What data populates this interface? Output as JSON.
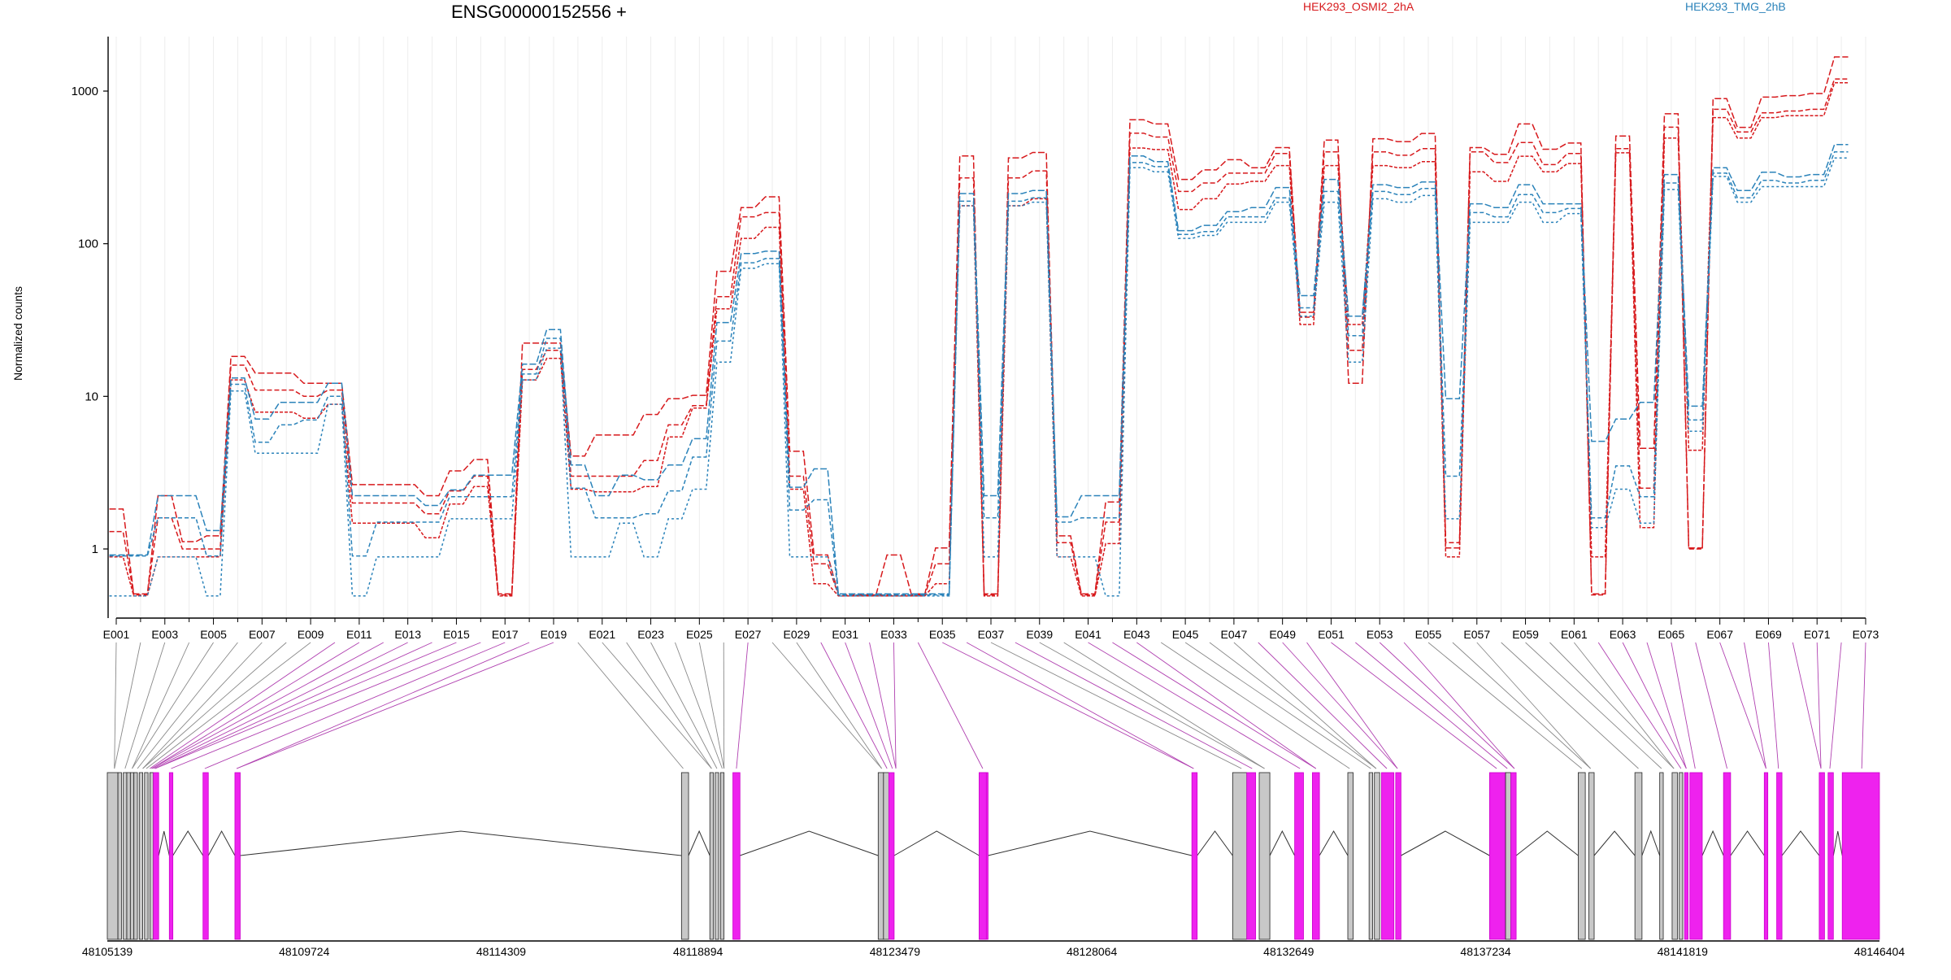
{
  "chart_data": {
    "type": "line",
    "title": "ENSG00000152556 +",
    "ylabel": "Normalized counts",
    "yscale": "log",
    "ylim": [
      0.5,
      2000
    ],
    "yticks": [
      1,
      10,
      100,
      1000
    ],
    "ytick_labels": [
      "1",
      "10",
      "100",
      "1000"
    ],
    "exon_labels_shown": [
      "E001",
      "E003",
      "E005",
      "E007",
      "E009",
      "E011",
      "E013",
      "E015",
      "E017",
      "E019",
      "E021",
      "E023",
      "E025",
      "E027",
      "E029",
      "E031",
      "E033",
      "E035",
      "E037",
      "E039",
      "E041",
      "E043",
      "E045",
      "E047",
      "E049",
      "E051",
      "E053",
      "E055",
      "E057",
      "E059",
      "E061",
      "E063",
      "E065",
      "E067",
      "E069",
      "E071",
      "E073"
    ],
    "groups": [
      {
        "name": "HEK293_OSMI2_2hA",
        "color": "#d7191c"
      },
      {
        "name": "HEK293_TMG_2hB",
        "color": "#2b83ba"
      }
    ],
    "series": [
      {
        "group": 0,
        "dash": "8,3",
        "values": [
          1.8,
          0.5,
          2.2,
          1.1,
          1.2,
          18,
          14,
          14,
          12,
          12,
          2.6,
          2.6,
          2.6,
          2.2,
          3.2,
          3.8,
          0.5,
          22,
          22,
          4,
          5.5,
          5.5,
          7.5,
          9.5,
          10,
          65,
          170,
          200,
          4.3,
          0.9,
          0.5,
          0.5,
          0.9,
          0.5,
          1,
          370,
          0.5,
          360,
          390,
          1.2,
          0.5,
          2,
          640,
          600,
          260,
          300,
          350,
          310,
          420,
          35,
          470,
          12,
          480,
          460,
          520,
          1,
          420,
          380,
          600,
          410,
          450,
          0.5,
          500,
          4.5,
          700,
          1,
          880,
          570,
          900,
          920,
          950,
          1650
        ]
      },
      {
        "group": 0,
        "dash": "6,3",
        "values": [
          1.3,
          0.5,
          1.6,
          1,
          1,
          16,
          11,
          11,
          10,
          11,
          2,
          2,
          2,
          1.7,
          2.4,
          3,
          0.5,
          15,
          20,
          3,
          3,
          3,
          3.8,
          6.5,
          8.7,
          45,
          150,
          160,
          3,
          0.8,
          0.5,
          0.5,
          0.5,
          0.5,
          0.8,
          270,
          0.5,
          270,
          300,
          1.1,
          0.5,
          1.5,
          530,
          500,
          220,
          250,
          290,
          290,
          390,
          33,
          400,
          20,
          400,
          380,
          420,
          1.1,
          400,
          340,
          460,
          330,
          390,
          0.5,
          420,
          2.5,
          580,
          1,
          760,
          540,
          720,
          740,
          760,
          1200
        ]
      },
      {
        "group": 0,
        "dash": "4,2",
        "values": [
          0.9,
          0.5,
          0.9,
          0.9,
          0.9,
          13,
          8,
          8,
          7.3,
          9,
          1.5,
          1.5,
          1.5,
          1.2,
          2,
          2.6,
          0.5,
          13,
          18,
          2.5,
          2.4,
          2.4,
          2.6,
          5.5,
          8.5,
          38,
          110,
          130,
          2.5,
          0.6,
          0.5,
          0.5,
          0.5,
          0.5,
          0.6,
          180,
          0.5,
          180,
          200,
          0.9,
          0.5,
          1.1,
          430,
          420,
          170,
          200,
          250,
          260,
          330,
          30,
          330,
          30,
          330,
          320,
          350,
          0.9,
          300,
          260,
          380,
          300,
          340,
          0.9,
          400,
          1.4,
          500,
          4.5,
          680,
          500,
          680,
          700,
          700,
          1150
        ]
      },
      {
        "group": 1,
        "dash": "8,3",
        "values": [
          0.9,
          0.9,
          2.2,
          2.2,
          1.3,
          13,
          7,
          9,
          9,
          12,
          2.2,
          2.2,
          2.2,
          1.9,
          2.4,
          3,
          3,
          16,
          27,
          3.5,
          2.2,
          3,
          2.8,
          3.5,
          5.2,
          30,
          85,
          88,
          2.5,
          3.3,
          0.5,
          0.5,
          0.5,
          0.5,
          0.5,
          210,
          2.2,
          210,
          220,
          1.6,
          2.2,
          2.2,
          370,
          340,
          120,
          130,
          160,
          170,
          230,
          45,
          260,
          33,
          240,
          230,
          250,
          9.5,
          180,
          170,
          240,
          180,
          180,
          5,
          7,
          9,
          280,
          8.5,
          310,
          220,
          290,
          270,
          280,
          440
        ]
      },
      {
        "group": 1,
        "dash": "5,3",
        "values": [
          0.9,
          0.9,
          1.6,
          1.6,
          0.9,
          12,
          5,
          6.5,
          7,
          10,
          0.9,
          1.5,
          1.5,
          1.5,
          2.2,
          2.2,
          2.2,
          14,
          24,
          2.5,
          1.6,
          1.6,
          1.7,
          2.4,
          4,
          23,
          75,
          80,
          1.8,
          2.1,
          0.5,
          0.5,
          0.5,
          0.5,
          0.5,
          190,
          1.6,
          190,
          200,
          1.5,
          1.6,
          1.6,
          340,
          320,
          115,
          120,
          150,
          150,
          200,
          38,
          220,
          25,
          220,
          210,
          230,
          3,
          160,
          150,
          210,
          160,
          170,
          1.6,
          3.5,
          2.2,
          250,
          7,
          290,
          200,
          260,
          250,
          260,
          400
        ]
      },
      {
        "group": 1,
        "dash": "3,3",
        "values": [
          0.5,
          0.5,
          0.9,
          0.9,
          0.5,
          11,
          4.3,
          4.3,
          4.3,
          9,
          0.5,
          0.9,
          0.9,
          0.9,
          1.6,
          1.6,
          1.6,
          13,
          21,
          0.9,
          0.9,
          1.5,
          0.9,
          1.6,
          2.5,
          17,
          70,
          75,
          0.9,
          0.9,
          0.5,
          0.5,
          0.5,
          0.5,
          0.5,
          180,
          0.9,
          180,
          190,
          0.9,
          0.9,
          0.5,
          320,
          300,
          110,
          115,
          140,
          140,
          190,
          34,
          190,
          17,
          200,
          190,
          210,
          1.6,
          140,
          140,
          190,
          140,
          160,
          1.4,
          2.5,
          1.5,
          230,
          6,
          280,
          190,
          240,
          240,
          240,
          370
        ]
      }
    ],
    "genomic_axis_ticks": [
      "48105139",
      "48109724",
      "48114309",
      "48118894",
      "48123479",
      "48128064",
      "48132649",
      "48137234",
      "48141819",
      "48146404"
    ],
    "genomic_range": [
      48105139,
      48146404
    ]
  }
}
